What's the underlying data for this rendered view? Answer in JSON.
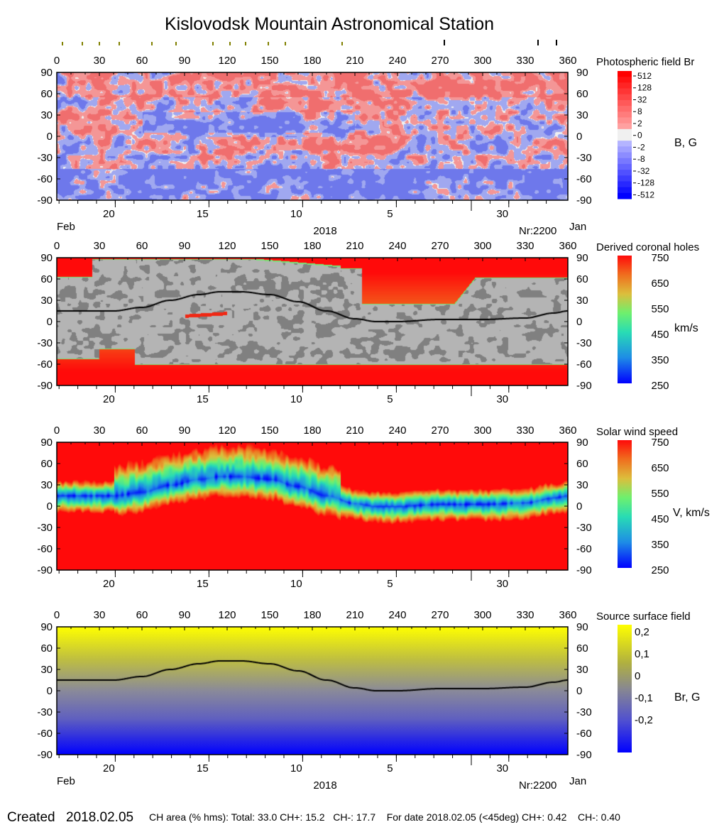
{
  "title": "Kislovodsk Mountain Astronomical Station",
  "top_markers": {
    "olive_longitudes": [
      4,
      18,
      30,
      44,
      67,
      84,
      110,
      122,
      133,
      149,
      161,
      201
    ],
    "black_longitudes": [
      273,
      339,
      352
    ],
    "olive_color": "#808000"
  },
  "axes": {
    "lon_ticks": [
      "0",
      "30",
      "60",
      "90",
      "120",
      "150",
      "180",
      "210",
      "240",
      "270",
      "300",
      "330",
      "360"
    ],
    "lon_range": [
      0,
      360
    ],
    "lat_ticks": [
      "90",
      "60",
      "30",
      "0",
      "-30",
      "-60",
      "-90"
    ],
    "lat_range": [
      -90,
      90
    ],
    "date_ticks": [
      {
        "label": "20",
        "date": "2018-02-20"
      },
      {
        "label": "15",
        "date": "2018-02-15"
      },
      {
        "label": "10",
        "date": "2018-02-10"
      },
      {
        "label": "5",
        "date": "2018-02-05"
      },
      {
        "label": "30",
        "date": "2018-01-30"
      }
    ],
    "date_range": [
      "2018-02-23",
      "2018-01-27"
    ],
    "month_left": "Feb",
    "month_right": "Jan",
    "year": "2018",
    "rotation": "Nr:2200"
  },
  "chart_data": [
    {
      "type": "heatmap",
      "title": "Photospheric field Br",
      "colorbar_label": "B, G",
      "colorbar_ticks": [
        "512",
        "128",
        "32",
        "8",
        "2",
        "0",
        "-2",
        "-8",
        "-32",
        "-128",
        "-512"
      ],
      "colors": {
        "positive": "#ff0000",
        "negative": "#0000ff",
        "zero": "#f0f0f0"
      },
      "show_date_axis_labels": true
    },
    {
      "type": "heatmap",
      "title": "Derived coronal holes",
      "colorbar_label": "km/s",
      "colorbar_ticks": [
        "750",
        "650",
        "550",
        "450",
        "350",
        "250"
      ],
      "colorbar_range": [
        250,
        750
      ],
      "colors": {
        "closed_field": "#b4b4b4",
        "closed_field_dark": "#808080",
        "neutral_line": "#000000"
      },
      "show_date_axis_labels": false
    },
    {
      "type": "heatmap",
      "title": "Solar wind speed",
      "colorbar_label": "V, km/s",
      "colorbar_ticks": [
        "750",
        "650",
        "550",
        "450",
        "350",
        "250"
      ],
      "colorbar_range": [
        250,
        750
      ],
      "show_date_axis_labels": false
    },
    {
      "type": "heatmap",
      "title": "Source surface field",
      "colorbar_label": "Br, G",
      "colorbar_ticks": [
        "0,2",
        "0,1",
        "0",
        "-0,1",
        "-0,2"
      ],
      "colors": {
        "positive": "#ffff00",
        "zero": "#808080",
        "negative": "#0000ff"
      },
      "show_date_axis_labels": true
    }
  ],
  "neutral_line": {
    "lon": [
      0,
      40,
      60,
      80,
      100,
      115,
      130,
      150,
      170,
      190,
      210,
      225,
      240,
      270,
      300,
      330,
      350,
      360
    ],
    "lat": [
      15,
      15,
      20,
      30,
      38,
      42,
      42,
      38,
      28,
      15,
      4,
      0,
      0,
      3,
      3,
      5,
      12,
      15
    ]
  },
  "footer": {
    "created_label": "Created",
    "created_date": "2018.02.05",
    "stats": "CH area (% hms): Total: 33.0 CH+: 15.2   CH-: 17.7    For date 2018.02.05 (<45deg) CH+: 0.42    CH-: 0.40"
  }
}
